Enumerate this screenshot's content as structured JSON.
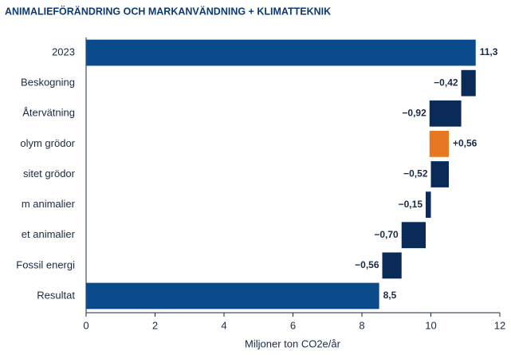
{
  "chart_data": {
    "type": "waterfall",
    "title": "ANIMALIEFÖRÄNDRING OCH MARKANVÄNDNING + KLIMATTEKNIK",
    "categories": [
      "2023",
      "Beskogning",
      "Återvätning",
      "olym grödor",
      "sitet grödor",
      "m animalier",
      "et animalier",
      "Fossil energi",
      "Resultat"
    ],
    "values": [
      11.3,
      -0.42,
      -0.92,
      0.56,
      -0.52,
      -0.15,
      -0.7,
      -0.56,
      8.5
    ],
    "value_labels": [
      "11,3",
      "−0,42",
      "−0,92",
      "+0,56",
      "−0,52",
      "−0,15",
      "−0,70",
      "−0,56",
      "8,5"
    ],
    "color_total": "#0b4a8b",
    "color_decrease": "#0a2a57",
    "color_increase": "#e87722",
    "xlabel": "Miljoner ton CO2e/år",
    "xlim": [
      0,
      12
    ],
    "xticks": [
      0,
      2,
      4,
      6,
      8,
      10,
      12
    ]
  }
}
